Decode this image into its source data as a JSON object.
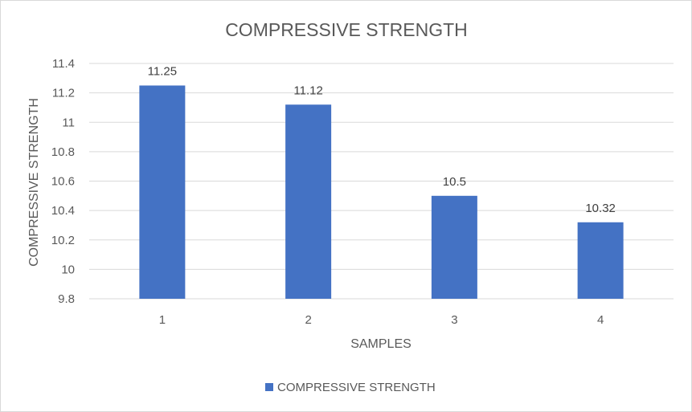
{
  "chart_data": {
    "type": "bar",
    "title": "COMPRESSIVE STRENGTH",
    "xlabel": "SAMPLES",
    "ylabel": "COMPRESSIVE STRENGTH",
    "categories": [
      "1",
      "2",
      "3",
      "4"
    ],
    "series": [
      {
        "name": "COMPRESSIVE STRENGTH",
        "values": [
          11.25,
          11.12,
          10.5,
          10.32
        ],
        "color": "#4472c4"
      }
    ],
    "data_labels": [
      "11.25",
      "11.12",
      "10.5",
      "10.32"
    ],
    "yticks": [
      "9.8",
      "10",
      "10.2",
      "10.4",
      "10.6",
      "10.8",
      "11",
      "11.2",
      "11.4"
    ],
    "ylim": [
      9.8,
      11.4
    ],
    "grid": true,
    "legend": "bottom",
    "colors": {
      "bar": "#4472c4",
      "gridline": "#d9d9d9",
      "text": "#595959",
      "border": "#d9d9d9"
    }
  }
}
